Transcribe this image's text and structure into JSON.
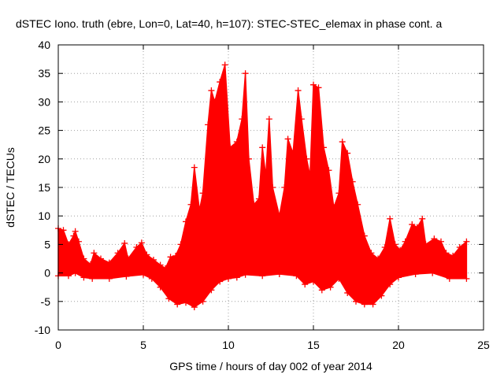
{
  "chart_data": {
    "type": "scatter",
    "title": "dSTEC Iono. truth (ebre, Lon=0, Lat=40, h=107): STEC-STEC_elemax in phase cont. a",
    "xlabel": "GPS time / hours of day 002 of year 2014",
    "ylabel": "dSTEC  / TECUs",
    "xlim": [
      0,
      25
    ],
    "ylim": [
      -10,
      40
    ],
    "xticks": [
      0,
      5,
      10,
      15,
      20,
      25
    ],
    "yticks": [
      -10,
      -5,
      0,
      5,
      10,
      15,
      20,
      25,
      30,
      35,
      40
    ],
    "grid": true,
    "marker": "+",
    "color": "#ff0000",
    "series": [
      {
        "upper": [
          [
            0,
            7.8
          ],
          [
            0.3,
            7.5
          ],
          [
            0.6,
            5
          ],
          [
            0.9,
            6.5
          ],
          [
            1.0,
            7.3
          ],
          [
            1.2,
            5.5
          ],
          [
            1.5,
            2.5
          ],
          [
            1.9,
            1.5
          ],
          [
            2.1,
            3.5
          ],
          [
            2.5,
            2.5
          ],
          [
            3.0,
            1.8
          ],
          [
            3.5,
            3.5
          ],
          [
            3.9,
            5.2
          ],
          [
            4.1,
            2.5
          ],
          [
            4.6,
            4.5
          ],
          [
            4.9,
            5.3
          ],
          [
            5.2,
            3.2
          ],
          [
            5.6,
            2.3
          ],
          [
            6.0,
            1.4
          ],
          [
            6.3,
            0.8
          ],
          [
            6.6,
            2.8
          ],
          [
            6.9,
            3.0
          ],
          [
            7.2,
            5.0
          ],
          [
            7.5,
            9.0
          ],
          [
            7.8,
            12.0
          ],
          [
            8.0,
            18.5
          ],
          [
            8.3,
            11.0
          ],
          [
            8.5,
            14.0
          ],
          [
            8.8,
            26.0
          ],
          [
            9.0,
            32.0
          ],
          [
            9.2,
            30.0
          ],
          [
            9.5,
            33.5
          ],
          [
            9.8,
            36.5
          ],
          [
            10.1,
            22.0
          ],
          [
            10.5,
            23.0
          ],
          [
            10.8,
            27.0
          ],
          [
            11.0,
            35.0
          ],
          [
            11.2,
            20.0
          ],
          [
            11.5,
            12.0
          ],
          [
            11.8,
            13.0
          ],
          [
            12.0,
            22.0
          ],
          [
            12.2,
            17.0
          ],
          [
            12.4,
            27.0
          ],
          [
            12.6,
            15.0
          ],
          [
            13.0,
            10.0
          ],
          [
            13.3,
            15.0
          ],
          [
            13.5,
            23.5
          ],
          [
            13.8,
            21.0
          ],
          [
            14.1,
            32.0
          ],
          [
            14.3,
            27.0
          ],
          [
            14.6,
            20.0
          ],
          [
            14.8,
            17.0
          ],
          [
            15.0,
            33.0
          ],
          [
            15.3,
            32.5
          ],
          [
            15.6,
            22.0
          ],
          [
            15.9,
            18.0
          ],
          [
            16.2,
            11.5
          ],
          [
            16.5,
            14.0
          ],
          [
            16.7,
            23.0
          ],
          [
            17.0,
            21.0
          ],
          [
            17.3,
            16.0
          ],
          [
            17.6,
            12.0
          ],
          [
            18.0,
            6.5
          ],
          [
            18.4,
            3.5
          ],
          [
            18.8,
            2.5
          ],
          [
            19.2,
            4.5
          ],
          [
            19.5,
            9.5
          ],
          [
            19.8,
            5.0
          ],
          [
            20.1,
            4.0
          ],
          [
            20.4,
            5.5
          ],
          [
            20.8,
            8.5
          ],
          [
            21.1,
            8.0
          ],
          [
            21.4,
            9.5
          ],
          [
            21.6,
            5.0
          ],
          [
            22.1,
            6.0
          ],
          [
            22.5,
            5.5
          ],
          [
            22.8,
            3.5
          ],
          [
            23.2,
            3.0
          ],
          [
            23.6,
            4.5
          ],
          [
            24.0,
            5.5
          ]
        ],
        "lower": [
          [
            0,
            -0.5
          ],
          [
            0.6,
            -0.5
          ],
          [
            1.0,
            0.0
          ],
          [
            1.5,
            -0.8
          ],
          [
            2.0,
            -1.0
          ],
          [
            3.0,
            -1.0
          ],
          [
            4.0,
            -0.6
          ],
          [
            5.0,
            -0.3
          ],
          [
            5.5,
            -1.0
          ],
          [
            6.0,
            -2.5
          ],
          [
            6.5,
            -4.5
          ],
          [
            7.0,
            -5.5
          ],
          [
            7.5,
            -5.2
          ],
          [
            8.0,
            -6.0
          ],
          [
            8.5,
            -5.0
          ],
          [
            9.0,
            -3.0
          ],
          [
            9.5,
            -1.5
          ],
          [
            10.0,
            -1.0
          ],
          [
            10.5,
            -0.8
          ],
          [
            11.0,
            -0.3
          ],
          [
            12.0,
            -0.5
          ],
          [
            13.0,
            -0.2
          ],
          [
            14.0,
            -0.5
          ],
          [
            14.5,
            -2.0
          ],
          [
            15.0,
            -1.5
          ],
          [
            15.5,
            -3.0
          ],
          [
            16.0,
            -2.5
          ],
          [
            16.5,
            -1.0
          ],
          [
            17.0,
            -3.5
          ],
          [
            17.5,
            -5.0
          ],
          [
            18.0,
            -5.5
          ],
          [
            18.5,
            -5.5
          ],
          [
            19.0,
            -4.0
          ],
          [
            19.5,
            -2.0
          ],
          [
            20.0,
            -0.8
          ],
          [
            21.0,
            -0.2
          ],
          [
            22.0,
            0.0
          ],
          [
            23.0,
            -1.0
          ],
          [
            24.0,
            -1.0
          ]
        ]
      }
    ]
  }
}
